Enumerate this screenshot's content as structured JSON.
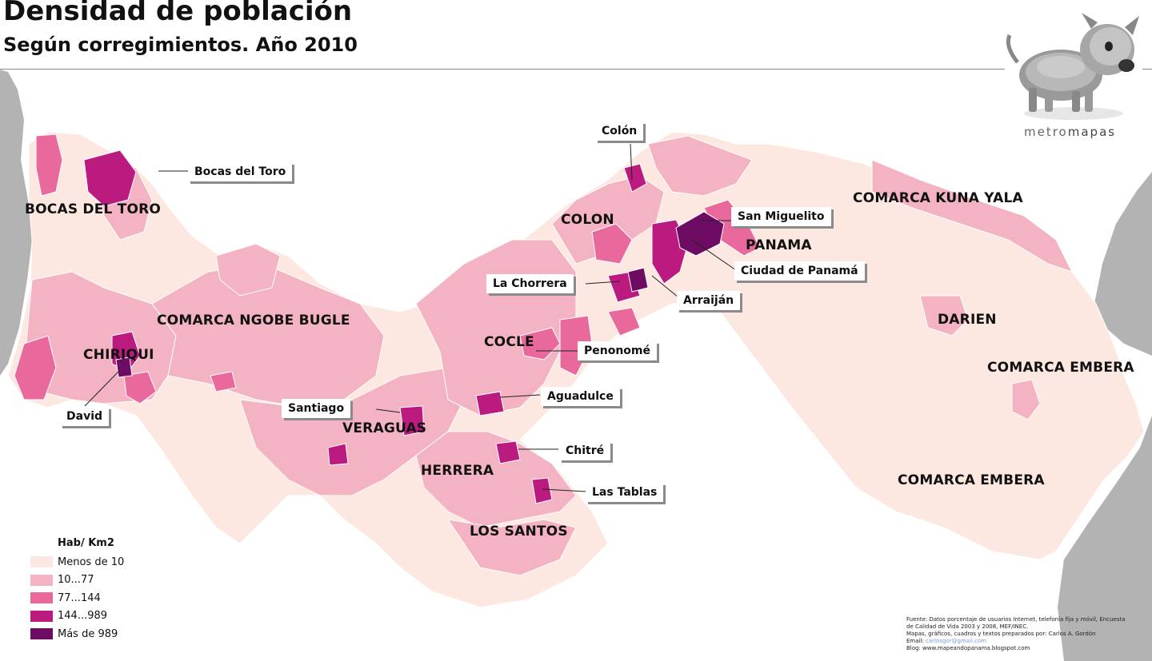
{
  "header": {
    "title": "Densidad de población",
    "subtitle": "Según corregimientos. Año 2010"
  },
  "logo": {
    "name_part1": "metro",
    "name_part2": "mapas"
  },
  "regions": [
    {
      "id": "bocas",
      "label": "BOCAS DEL TORO"
    },
    {
      "id": "ngobe",
      "label": "COMARCA NGOBE BUGLE"
    },
    {
      "id": "chiriqui",
      "label": "CHIRIQUI"
    },
    {
      "id": "veraguas",
      "label": "VERAGUAS"
    },
    {
      "id": "cocle",
      "label": "COCLE"
    },
    {
      "id": "herrera",
      "label": "HERRERA"
    },
    {
      "id": "lossantos",
      "label": "LOS SANTOS"
    },
    {
      "id": "colon",
      "label": "COLON"
    },
    {
      "id": "panama",
      "label": "PANAMA"
    },
    {
      "id": "kuna",
      "label": "COMARCA KUNA YALA"
    },
    {
      "id": "darien",
      "label": "DARIEN"
    },
    {
      "id": "embera1",
      "label": "COMARCA EMBERA"
    },
    {
      "id": "embera2",
      "label": "COMARCA EMBERA"
    }
  ],
  "callouts": [
    {
      "id": "bocas-toro",
      "label": "Bocas del Toro"
    },
    {
      "id": "colon-city",
      "label": "Colón"
    },
    {
      "id": "san-miguelito",
      "label": "San Miguelito"
    },
    {
      "id": "ciudad-panama",
      "label": "Ciudad de Panamá"
    },
    {
      "id": "la-chorrera",
      "label": "La Chorrera"
    },
    {
      "id": "arraijan",
      "label": "Arraiján"
    },
    {
      "id": "penonome",
      "label": "Penonomé"
    },
    {
      "id": "aguadulce",
      "label": "Aguadulce"
    },
    {
      "id": "santiago",
      "label": "Santiago"
    },
    {
      "id": "chitre",
      "label": "Chitré"
    },
    {
      "id": "las-tablas",
      "label": "Las Tablas"
    },
    {
      "id": "david",
      "label": "David"
    }
  ],
  "legend": {
    "title": "Hab/ Km2",
    "items": [
      {
        "label": "Menos de 10",
        "color": "#fde8e1"
      },
      {
        "label": "10...77",
        "color": "#f4b3c3"
      },
      {
        "label": "77...144",
        "color": "#e9699c"
      },
      {
        "label": "144...989",
        "color": "#bb1a7f"
      },
      {
        "label": "Más de 989",
        "color": "#6e0b63"
      }
    ]
  },
  "colors": {
    "land_gray": "#b3b3b3",
    "sea": "#ffffff"
  },
  "source": {
    "line1": "Fuente: Datos porcentaje de usuarios Internet, telefonía fija y móvil, Encuesta",
    "line2": "de Calidad de Vida 2003 y 2008, MEF/INEC.",
    "line3": "Mapas, gráficos, cuadros y textos preparados por: Carlos A. Gordón",
    "email_label": "Email:",
    "email": "carlosgor@gmail.com",
    "blog": "Blog: www.mapeandopanama.blogspot.com"
  }
}
